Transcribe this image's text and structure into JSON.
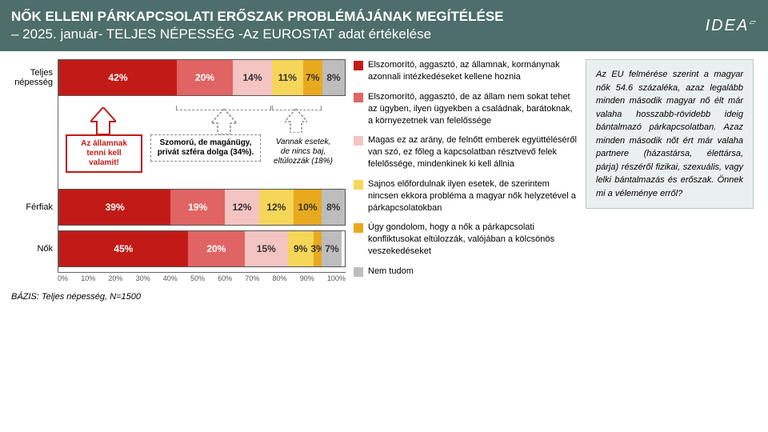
{
  "header": {
    "title": "NŐK ELLENI PÁRKAPCSOLATI ERŐSZAK PROBLÉMÁJÁNAK MEGÍTÉLÉSE",
    "subtitle": "– 2025. január- TELJES NÉPESSÉG -Az EUROSTAT adat értékelése",
    "logo": "IDEA"
  },
  "colors": {
    "c1": "#c21b17",
    "c2": "#e06463",
    "c3": "#f4c4c2",
    "c4": "#f6d659",
    "c5": "#e9a91f",
    "c6": "#bdbdbd",
    "header_bg": "#4d6e6b"
  },
  "legend": [
    {
      "color": "#c21b17",
      "text": "Elszomorító, aggasztó, az államnak, kormánynak azonnali intézkedéseket kellene hoznia"
    },
    {
      "color": "#e06463",
      "text": "Elszomorító, aggasztó, de az állam nem sokat tehet az ügyben, ilyen ügyekben a családnak, barátoknak, a környezetnek van felelőssége"
    },
    {
      "color": "#f4c4c2",
      "text": "Magas ez az arány, de felnőtt emberek együttéléséről van szó, ez főleg a kapcsolatban résztvevő felek felelőssége, mindenkinek ki kell állnia"
    },
    {
      "color": "#f6d659",
      "text": "Sajnos előfordulnak ilyen esetek, de szerintem nincsen ekkora probléma a magyar nők helyzetével a párkapcsolatokban"
    },
    {
      "color": "#e9a91f",
      "text": "Úgy gondolom, hogy a nők a párkapcsolati konfliktusokat eltúlozzák, valójában a kölcsönös veszekedéseket"
    },
    {
      "color": "#bdbdbd",
      "text": "Nem tudom"
    }
  ],
  "chart": {
    "rows": [
      {
        "label": "Teljes népesség",
        "segs": [
          {
            "v": 42,
            "c": "#c21b17"
          },
          {
            "v": 20,
            "c": "#e06463"
          },
          {
            "v": 14,
            "c": "#f4c4c2",
            "light": true
          },
          {
            "v": 11,
            "c": "#f6d659",
            "light": true
          },
          {
            "v": 7,
            "c": "#e9a91f",
            "light": true
          },
          {
            "v": 8,
            "c": "#bdbdbd",
            "light": true
          }
        ]
      },
      {
        "label": "Férfiak",
        "segs": [
          {
            "v": 39,
            "c": "#c21b17"
          },
          {
            "v": 19,
            "c": "#e06463"
          },
          {
            "v": 12,
            "c": "#f4c4c2",
            "light": true
          },
          {
            "v": 12,
            "c": "#f6d659",
            "light": true
          },
          {
            "v": 10,
            "c": "#e9a91f",
            "light": true
          },
          {
            "v": 8,
            "c": "#bdbdbd",
            "light": true
          }
        ]
      },
      {
        "label": "Nők",
        "segs": [
          {
            "v": 45,
            "c": "#c21b17"
          },
          {
            "v": 20,
            "c": "#e06463"
          },
          {
            "v": 15,
            "c": "#f4c4c2",
            "light": true
          },
          {
            "v": 9,
            "c": "#f6d659",
            "light": true
          },
          {
            "v": 3,
            "c": "#e9a91f",
            "light": true
          },
          {
            "v": 7,
            "c": "#bdbdbd",
            "light": true
          }
        ]
      }
    ],
    "xticks": [
      "0%",
      "10%",
      "20%",
      "30%",
      "40%",
      "50%",
      "60%",
      "70%",
      "80%",
      "90%",
      "100%"
    ]
  },
  "callouts": {
    "a": {
      "text": "Az államnak tenni kell valamit!",
      "color": "#c21b17"
    },
    "b": {
      "text": "Szomorú, de magánügy, privát szféra dolga (34%).",
      "color": "#333"
    },
    "c": {
      "text": "Vannak esetek, de nincs baj, eltúlozzák (18%)",
      "color": "#333"
    }
  },
  "note": "Az EU felmérése szerint a magyar nők 54.6 százaléka, azaz legalább minden második magyar nő élt már valaha hosszabb-rövidebb ideig bántalmazó párkapcsolatban. Azaz minden második nőt ért már valaha partnere (házastársa, élettársa, párja) részéről fizikai, szexuális, vagy lelki bántalmazás és erőszak. Önnek mi a véleménye erről?",
  "footer": "BÁZIS: Teljes népesség, N=1500"
}
